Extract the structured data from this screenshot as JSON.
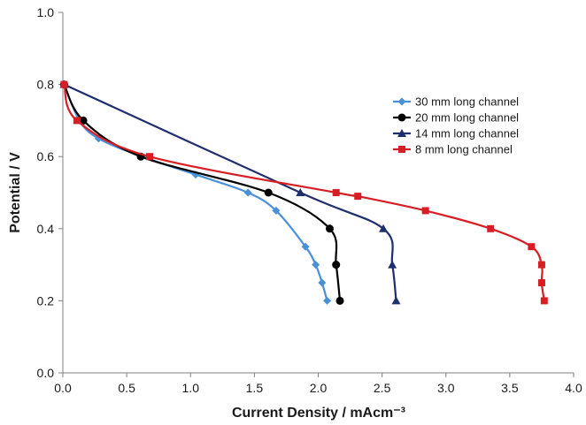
{
  "chart_data": {
    "type": "line",
    "xlabel": "Current Density / mAcm⁻³",
    "ylabel": "Potential / V",
    "xlim": [
      0,
      4
    ],
    "ylim": [
      0,
      1
    ],
    "x_ticks": [
      "0.0",
      "0.5",
      "1.0",
      "1.5",
      "2.0",
      "2.5",
      "3.0",
      "3.5",
      "4.0"
    ],
    "y_ticks": [
      "0.0",
      "0.2",
      "0.4",
      "0.6",
      "0.8",
      "1.0"
    ],
    "grid": false,
    "legend_position": "right",
    "series": [
      {
        "name": "30 mm long channel",
        "color": "#4a90d6",
        "marker": "diamond",
        "points": [
          [
            0.01,
            0.8
          ],
          [
            0.13,
            0.7
          ],
          [
            0.28,
            0.65
          ],
          [
            0.62,
            0.6
          ],
          [
            1.04,
            0.55
          ],
          [
            1.45,
            0.5
          ],
          [
            1.67,
            0.45
          ],
          [
            1.9,
            0.35
          ],
          [
            1.98,
            0.3
          ],
          [
            2.03,
            0.25
          ],
          [
            2.07,
            0.2
          ]
        ]
      },
      {
        "name": "20 mm long channel",
        "color": "#000000",
        "marker": "circle",
        "points": [
          [
            0.01,
            0.8
          ],
          [
            0.16,
            0.7
          ],
          [
            0.61,
            0.6
          ],
          [
            1.61,
            0.5
          ],
          [
            2.09,
            0.4
          ],
          [
            2.14,
            0.3
          ],
          [
            2.17,
            0.2
          ]
        ]
      },
      {
        "name": "14 mm long channel",
        "color": "#1f2f6e",
        "marker": "triangle",
        "points": [
          [
            0.01,
            0.8
          ],
          [
            1.86,
            0.5
          ],
          [
            2.51,
            0.4
          ],
          [
            2.58,
            0.3
          ],
          [
            2.61,
            0.2
          ]
        ]
      },
      {
        "name": "8 mm long channel",
        "color": "#d71e24",
        "marker": "square",
        "points": [
          [
            0.01,
            0.8
          ],
          [
            0.11,
            0.7
          ],
          [
            0.68,
            0.6
          ],
          [
            2.14,
            0.5
          ],
          [
            2.31,
            0.49
          ],
          [
            2.84,
            0.45
          ],
          [
            3.35,
            0.4
          ],
          [
            3.67,
            0.35
          ],
          [
            3.75,
            0.3
          ],
          [
            3.75,
            0.25
          ],
          [
            3.77,
            0.2
          ]
        ]
      }
    ]
  }
}
